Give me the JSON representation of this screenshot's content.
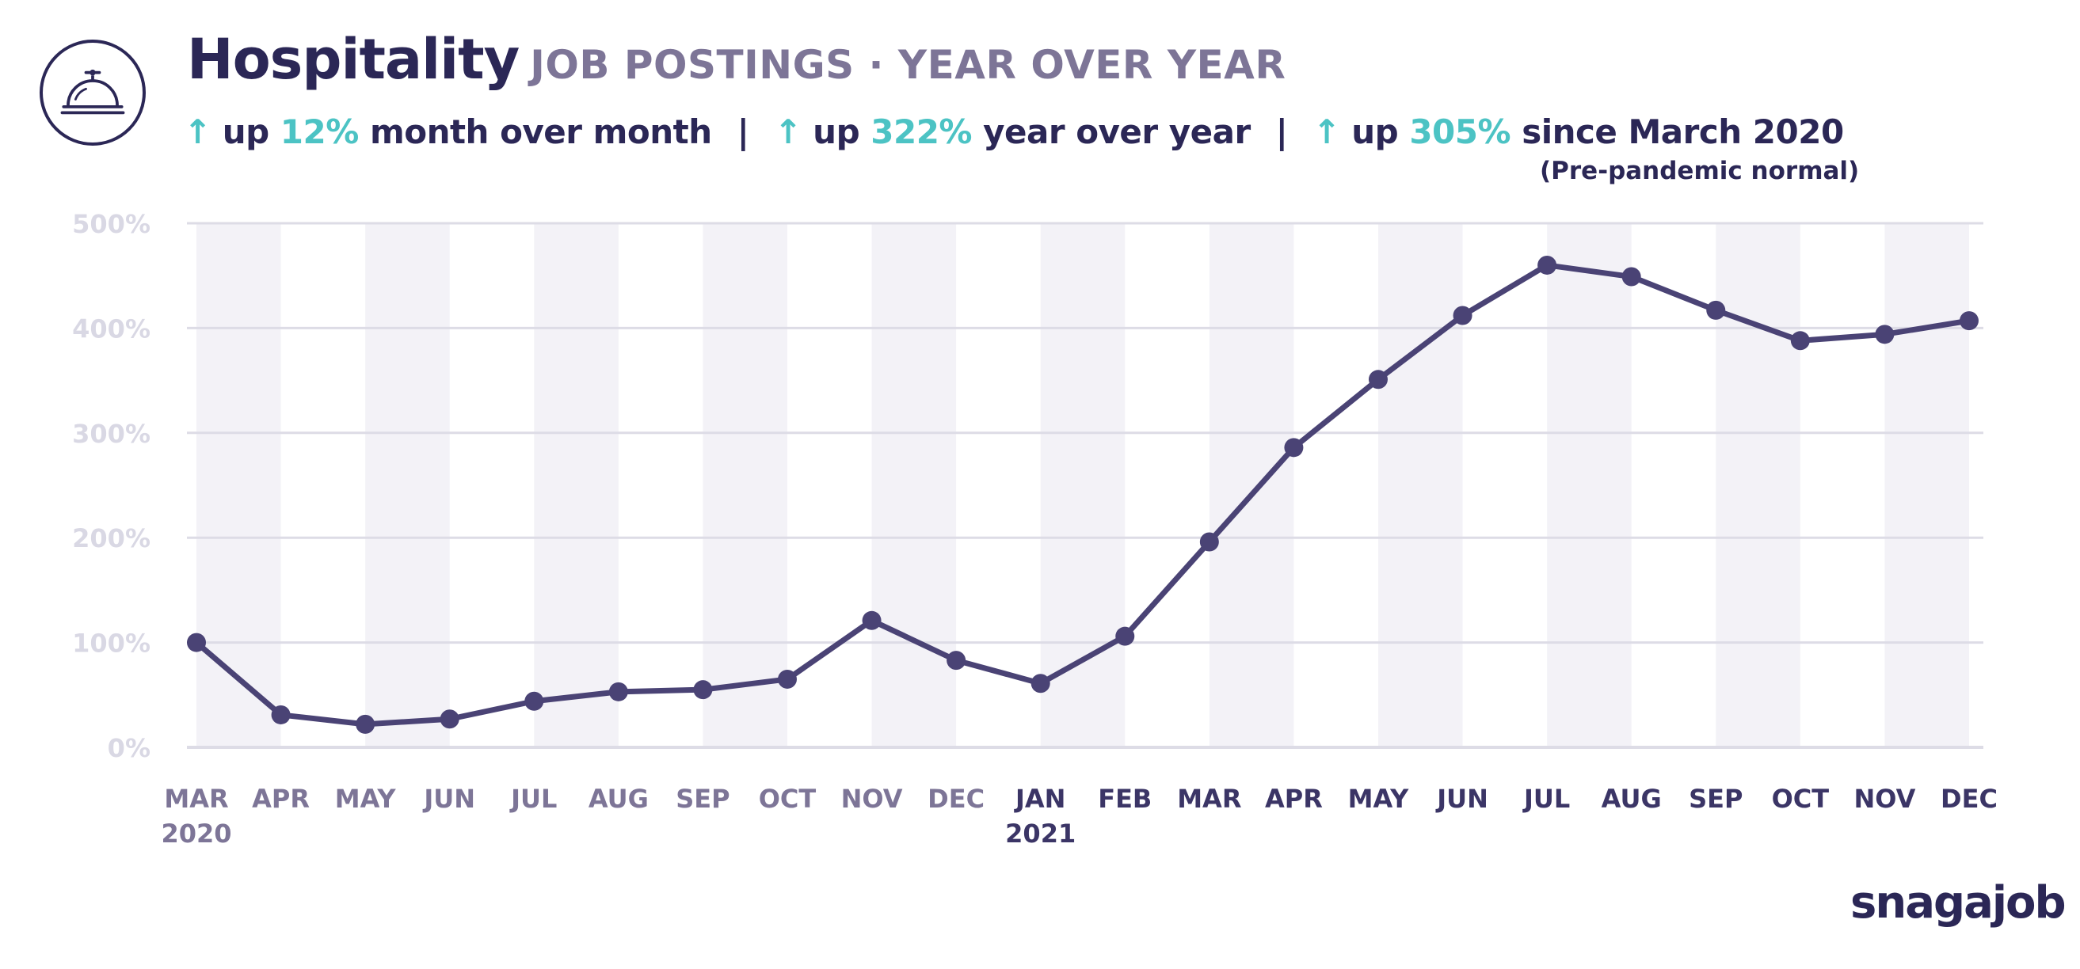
{
  "header": {
    "icon": "service-bell-icon",
    "title": "Hospitality",
    "subtitle": "JOB POSTINGS · YEAR OVER YEAR"
  },
  "stats": [
    {
      "arrow": "↑",
      "prefix": "up",
      "value": "12%",
      "suffix": "month over month"
    },
    {
      "arrow": "↑",
      "prefix": "up",
      "value": "322%",
      "suffix": "year over year"
    },
    {
      "arrow": "↑",
      "prefix": "up",
      "value": "305%",
      "suffix": "since March 2020"
    }
  ],
  "separator": "|",
  "note": "(Pre-pandemic normal)",
  "brand": "snagajob",
  "colors": {
    "line": "#4a4375",
    "accent": "#4cc3c4",
    "title": "#2b2756",
    "subtitle": "#7d7597",
    "band": "#f3f2f7",
    "grid": "#dddce6",
    "ytick": "#d9d8e4",
    "xtick_2020": "#7d7597",
    "xtick_2021": "#3b3566"
  },
  "chart_data": {
    "type": "line",
    "title": "",
    "xlabel": "",
    "ylabel": "",
    "categories": [
      "MAR",
      "APR",
      "MAY",
      "JUN",
      "JUL",
      "AUG",
      "SEP",
      "OCT",
      "NOV",
      "DEC",
      "JAN",
      "FEB",
      "MAR",
      "APR",
      "MAY",
      "JUN",
      "JUL",
      "AUG",
      "SEP",
      "OCT",
      "NOV",
      "DEC"
    ],
    "year_labels": [
      {
        "index": 0,
        "label": "2020"
      },
      {
        "index": 10,
        "label": "2021"
      }
    ],
    "series": [
      {
        "values": [
          100,
          31,
          22,
          27,
          44,
          53,
          55,
          65,
          121,
          83,
          61,
          106,
          196,
          286,
          351,
          412,
          460,
          449,
          417,
          388,
          394,
          407
        ]
      }
    ],
    "yticks": [
      "0%",
      "100%",
      "200%",
      "300%",
      "400%",
      "500%"
    ],
    "ytick_values": [
      0,
      100,
      200,
      300,
      400,
      500
    ],
    "ylim": [
      0,
      500
    ],
    "grid": true,
    "legend": "none"
  }
}
